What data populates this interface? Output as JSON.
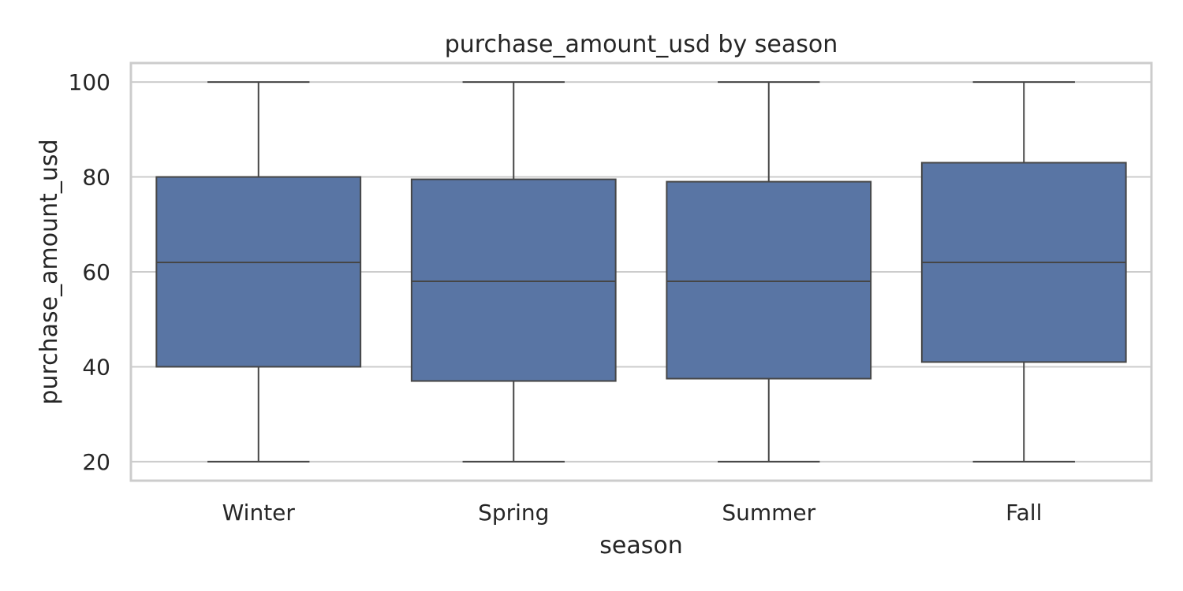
{
  "chart_data": {
    "type": "box",
    "title": "purchase_amount_usd by season",
    "xlabel": "season",
    "ylabel": "purchase_amount_usd",
    "categories": [
      "Winter",
      "Spring",
      "Summer",
      "Fall"
    ],
    "boxes": [
      {
        "category": "Winter",
        "min": 20,
        "q1": 40,
        "median": 62,
        "q3": 80,
        "max": 100
      },
      {
        "category": "Spring",
        "min": 20,
        "q1": 37,
        "median": 58,
        "q3": 79.5,
        "max": 100
      },
      {
        "category": "Summer",
        "min": 20,
        "q1": 37.5,
        "median": 58,
        "q3": 79,
        "max": 100
      },
      {
        "category": "Fall",
        "min": 20,
        "q1": 41,
        "median": 62,
        "q3": 83,
        "max": 100
      }
    ],
    "yticks": [
      20,
      40,
      60,
      80,
      100
    ],
    "ylim": [
      16,
      104
    ],
    "grid": true,
    "colors": {
      "box_fill": "#5975a4",
      "box_line": "#464646",
      "grid": "#cccccc",
      "frame": "#cccccc"
    }
  }
}
